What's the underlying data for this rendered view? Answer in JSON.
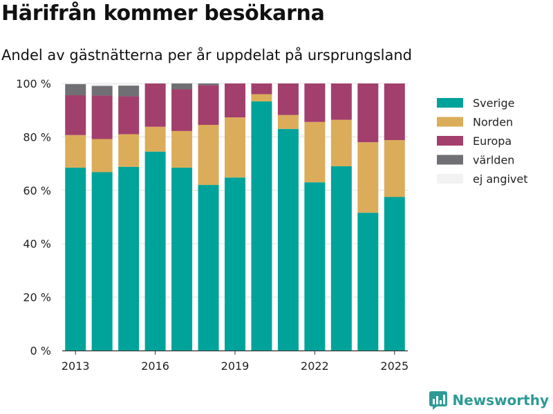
{
  "chart_data": {
    "type": "bar",
    "stacked": true,
    "title": "Härifrån kommer besökarna",
    "subtitle": "Andel av gästnätterna per år uppdelat på ursprungsland",
    "x": [
      2013,
      2014,
      2015,
      2016,
      2017,
      2018,
      2019,
      2020,
      2021,
      2022,
      2023,
      2024,
      2025
    ],
    "x_tick_labels": [
      "2013",
      "2016",
      "2019",
      "2022",
      "2025"
    ],
    "x_tick_values": [
      2013,
      2016,
      2019,
      2022,
      2025
    ],
    "y_tick_labels": [
      "0 %",
      "20 %",
      "40 %",
      "60 %",
      "80 %",
      "100 %"
    ],
    "y_tick_values": [
      0,
      20,
      40,
      60,
      80,
      100
    ],
    "ylim": [
      0,
      100
    ],
    "legend_position": "right",
    "grid": true,
    "series": [
      {
        "name": "Sverige",
        "color": "#00a39a",
        "values": [
          68.5,
          66.8,
          68.8,
          74.5,
          68.5,
          62.0,
          64.8,
          93.3,
          83.0,
          63.0,
          69.0,
          51.6,
          57.5
        ]
      },
      {
        "name": "Norden",
        "color": "#dbad5a",
        "values": [
          12.2,
          12.4,
          12.2,
          9.3,
          13.7,
          22.5,
          22.5,
          2.7,
          5.2,
          22.6,
          17.4,
          26.4,
          21.3
        ]
      },
      {
        "name": "Europa",
        "color": "#a33f6c",
        "values": [
          14.9,
          16.3,
          14.2,
          16.2,
          15.6,
          14.9,
          12.7,
          4.0,
          11.8,
          14.4,
          13.6,
          22.0,
          21.2
        ]
      },
      {
        "name": "världen",
        "color": "#6f6f74",
        "values": [
          4.2,
          3.6,
          4.0,
          0.0,
          2.2,
          0.6,
          0.0,
          0.0,
          0.0,
          0.0,
          0.0,
          0.0,
          0.0
        ]
      },
      {
        "name": "ej angivet",
        "color": "#f2f2f2",
        "values": [
          0.2,
          0.9,
          0.8,
          0.0,
          0.0,
          0.0,
          0.0,
          0.0,
          0.0,
          0.0,
          0.0,
          0.0,
          0.0
        ]
      }
    ]
  },
  "brand": {
    "name": "Newsworthy",
    "color": "#2e9a96"
  }
}
